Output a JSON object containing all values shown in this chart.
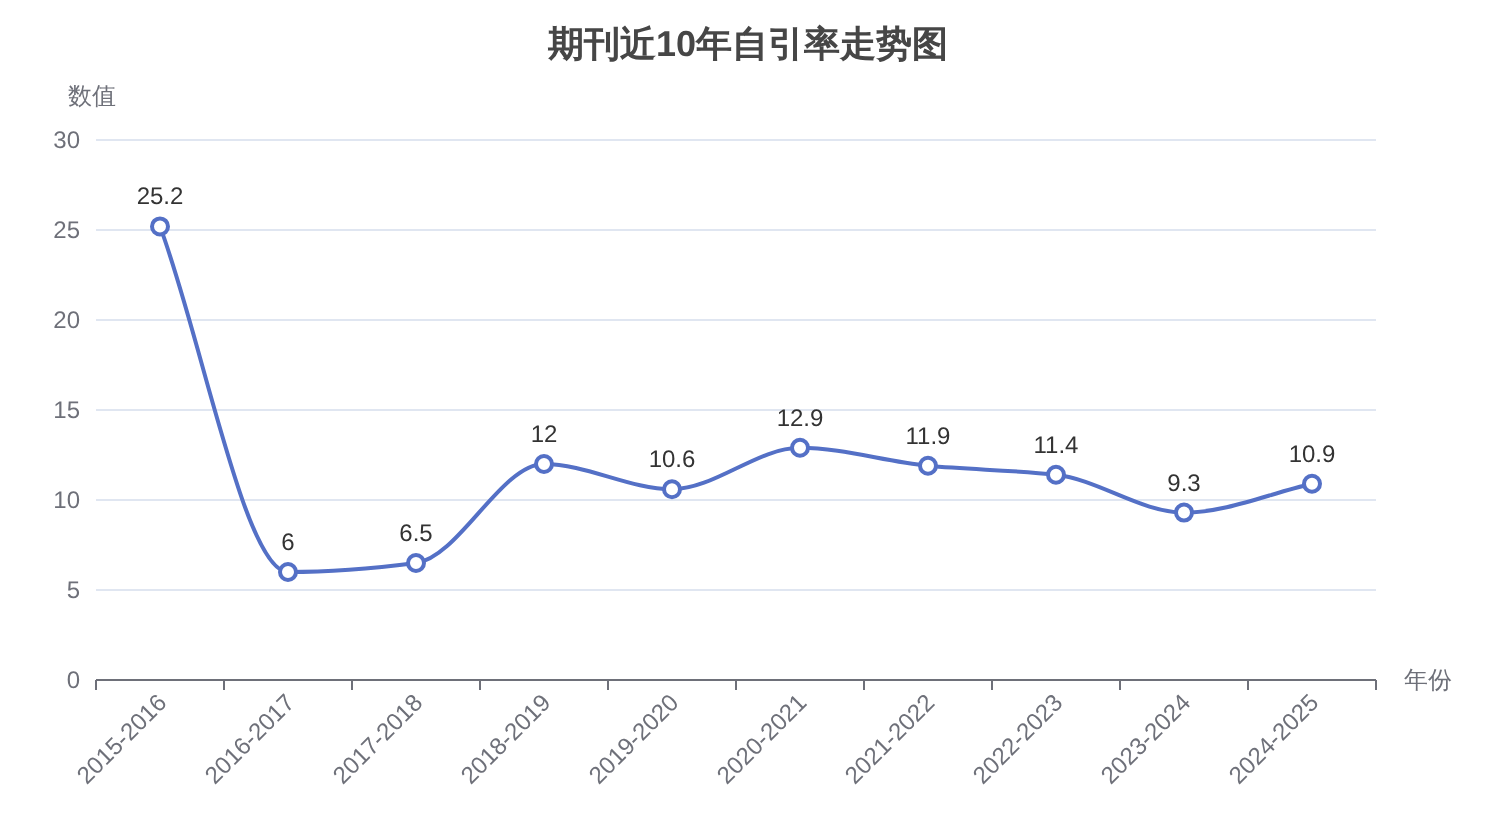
{
  "chart_data": {
    "type": "line",
    "title": "期刊近10年自引率走势图",
    "ylabel": "数值",
    "xlabel": "年份",
    "categories": [
      "2015-2016",
      "2016-2017",
      "2017-2018",
      "2018-2019",
      "2019-2020",
      "2020-2021",
      "2021-2022",
      "2022-2023",
      "2023-2024",
      "2024-2025"
    ],
    "series": [
      {
        "color": "#5470c6",
        "values": [
          25.2,
          6,
          6.5,
          12,
          10.6,
          12.9,
          11.9,
          11.4,
          9.3,
          10.9
        ]
      }
    ],
    "ylim": [
      0,
      30
    ],
    "yticks": [
      0,
      5,
      10,
      15,
      20,
      25,
      30
    ],
    "grid": "y",
    "marker": "circle",
    "line_style": "solid",
    "data_labels": true
  }
}
